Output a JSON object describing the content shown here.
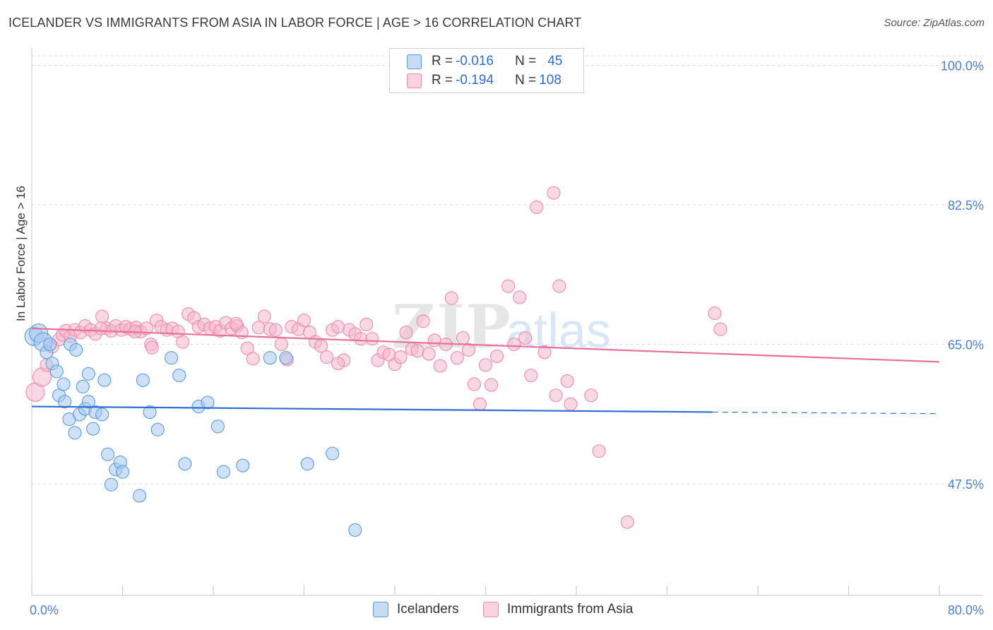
{
  "title": "ICELANDER VS IMMIGRANTS FROM ASIA IN LABOR FORCE | AGE > 16 CORRELATION CHART",
  "source": "Source: ZipAtlas.com",
  "watermark": "ZIPatlas",
  "legend": {
    "rows": [
      {
        "r_label": "R = ",
        "r_value": "-0.016",
        "n_label": "N = ",
        "n_value": "45",
        "color": "#a8c8f0"
      },
      {
        "r_label": "R = ",
        "r_value": "-0.194",
        "n_label": "N = ",
        "n_value": "108",
        "color": "#f4b8cc"
      }
    ]
  },
  "bottom_legend": [
    {
      "label": "Icelanders",
      "color": "#a8c8f0"
    },
    {
      "label": "Immigrants from Asia",
      "color": "#f4b8cc"
    }
  ],
  "chart_data": {
    "type": "scatter",
    "title": "ICELANDER VS IMMIGRANTS FROM ASIA IN LABOR FORCE | AGE > 16 CORRELATION CHART",
    "xlabel": "",
    "ylabel": "In Labor Force | Age > 16",
    "xlim": [
      0,
      80
    ],
    "ylim": [
      33.5,
      102
    ],
    "x_tick_labels": [
      "0.0%",
      "80.0%"
    ],
    "y_ticks": [
      47.5,
      65.0,
      82.5,
      100.0
    ],
    "y_tick_labels": [
      "47.5%",
      "65.0%",
      "82.5%",
      "100.0%"
    ],
    "grid": true,
    "legend_position": "top-center",
    "colors": {
      "blue": "#5b9be0",
      "blue_line": "#2e6fd1",
      "pink": "#f08aab",
      "pink_line": "#e8709a",
      "tick_label": "#4a7fd4"
    },
    "series": [
      {
        "name": "Icelanders",
        "color": "#a8c8f0",
        "stroke": "#5b9be0",
        "points": [
          [
            0.2,
            66.0
          ],
          [
            0.6,
            66.4
          ],
          [
            1.0,
            65.3
          ],
          [
            1.3,
            64.0
          ],
          [
            1.6,
            65.0
          ],
          [
            1.8,
            62.6
          ],
          [
            2.2,
            61.6
          ],
          [
            2.4,
            58.6
          ],
          [
            2.8,
            60.0
          ],
          [
            2.9,
            57.8
          ],
          [
            3.3,
            55.6
          ],
          [
            3.4,
            65.0
          ],
          [
            3.8,
            53.9
          ],
          [
            3.9,
            64.3
          ],
          [
            4.2,
            56.2
          ],
          [
            4.5,
            59.7
          ],
          [
            4.7,
            56.9
          ],
          [
            5.0,
            61.3
          ],
          [
            5.0,
            57.8
          ],
          [
            5.4,
            54.4
          ],
          [
            5.6,
            56.5
          ],
          [
            6.2,
            56.2
          ],
          [
            6.4,
            60.5
          ],
          [
            6.7,
            51.2
          ],
          [
            7.0,
            47.4
          ],
          [
            7.4,
            49.3
          ],
          [
            7.8,
            50.2
          ],
          [
            8.0,
            49.0
          ],
          [
            9.5,
            46.0
          ],
          [
            9.8,
            60.5
          ],
          [
            10.4,
            56.5
          ],
          [
            11.1,
            54.3
          ],
          [
            12.3,
            63.3
          ],
          [
            13.0,
            61.1
          ],
          [
            13.5,
            50.0
          ],
          [
            14.7,
            57.2
          ],
          [
            15.5,
            57.7
          ],
          [
            16.4,
            54.7
          ],
          [
            16.9,
            49.0
          ],
          [
            18.6,
            49.8
          ],
          [
            21.0,
            63.3
          ],
          [
            22.4,
            63.3
          ],
          [
            24.3,
            50.0
          ],
          [
            26.5,
            51.3
          ],
          [
            28.5,
            41.7
          ]
        ]
      },
      {
        "name": "Immigrants from Asia",
        "color": "#f4b8cc",
        "stroke": "#f08aab",
        "points": [
          [
            0.3,
            59.0
          ],
          [
            0.9,
            60.9
          ],
          [
            1.3,
            62.4
          ],
          [
            1.8,
            64.7
          ],
          [
            2.4,
            65.6
          ],
          [
            2.7,
            66.2
          ],
          [
            3.0,
            66.7
          ],
          [
            3.4,
            66.0
          ],
          [
            3.8,
            66.8
          ],
          [
            4.3,
            66.5
          ],
          [
            4.7,
            67.3
          ],
          [
            5.2,
            66.8
          ],
          [
            5.6,
            66.3
          ],
          [
            6.2,
            68.5
          ],
          [
            6.6,
            67.0
          ],
          [
            7.0,
            66.7
          ],
          [
            7.4,
            67.3
          ],
          [
            7.9,
            66.8
          ],
          [
            8.3,
            67.2
          ],
          [
            8.7,
            66.9
          ],
          [
            9.2,
            67.1
          ],
          [
            9.6,
            66.6
          ],
          [
            10.1,
            67.0
          ],
          [
            10.5,
            65.0
          ],
          [
            11.0,
            68.0
          ],
          [
            11.4,
            67.2
          ],
          [
            11.9,
            66.8
          ],
          [
            12.4,
            67.0
          ],
          [
            12.9,
            66.6
          ],
          [
            13.3,
            65.3
          ],
          [
            13.8,
            68.8
          ],
          [
            14.3,
            68.3
          ],
          [
            14.7,
            67.2
          ],
          [
            15.2,
            67.5
          ],
          [
            15.7,
            67.0
          ],
          [
            16.2,
            67.2
          ],
          [
            16.6,
            66.7
          ],
          [
            17.1,
            67.7
          ],
          [
            17.6,
            67.0
          ],
          [
            18.1,
            67.3
          ],
          [
            18.5,
            66.5
          ],
          [
            19.0,
            64.5
          ],
          [
            19.5,
            63.2
          ],
          [
            20.0,
            67.1
          ],
          [
            20.5,
            68.5
          ],
          [
            21.0,
            66.9
          ],
          [
            21.5,
            66.8
          ],
          [
            22.0,
            65.0
          ],
          [
            22.5,
            63.1
          ],
          [
            22.9,
            67.2
          ],
          [
            23.5,
            66.9
          ],
          [
            24.0,
            68.0
          ],
          [
            24.5,
            66.5
          ],
          [
            25.0,
            65.3
          ],
          [
            25.5,
            64.8
          ],
          [
            26.0,
            63.4
          ],
          [
            26.5,
            66.8
          ],
          [
            27.0,
            67.2
          ],
          [
            27.5,
            63.0
          ],
          [
            28.0,
            66.8
          ],
          [
            28.5,
            66.3
          ],
          [
            29.0,
            65.7
          ],
          [
            29.5,
            67.5
          ],
          [
            30.0,
            65.7
          ],
          [
            30.5,
            63.0
          ],
          [
            31.0,
            64.0
          ],
          [
            31.5,
            63.7
          ],
          [
            32.0,
            62.5
          ],
          [
            32.5,
            63.4
          ],
          [
            33.0,
            66.5
          ],
          [
            33.5,
            64.4
          ],
          [
            34.0,
            64.2
          ],
          [
            34.5,
            67.9
          ],
          [
            35.0,
            63.8
          ],
          [
            35.5,
            65.5
          ],
          [
            36.0,
            62.3
          ],
          [
            36.5,
            65.0
          ],
          [
            37.0,
            70.8
          ],
          [
            37.5,
            63.3
          ],
          [
            38.0,
            65.8
          ],
          [
            38.5,
            64.3
          ],
          [
            39.0,
            60.0
          ],
          [
            39.5,
            57.5
          ],
          [
            40.0,
            62.4
          ],
          [
            40.5,
            59.9
          ],
          [
            41.0,
            63.5
          ],
          [
            42.0,
            72.3
          ],
          [
            42.5,
            65.0
          ],
          [
            43.0,
            70.9
          ],
          [
            43.5,
            65.8
          ],
          [
            44.0,
            61.1
          ],
          [
            44.5,
            82.2
          ],
          [
            45.2,
            64.0
          ],
          [
            46.2,
            58.6
          ],
          [
            46.5,
            72.3
          ],
          [
            46.0,
            84.0
          ],
          [
            47.2,
            60.4
          ],
          [
            47.5,
            57.5
          ],
          [
            49.3,
            58.6
          ],
          [
            50.0,
            51.6
          ],
          [
            52.5,
            42.7
          ],
          [
            60.2,
            68.9
          ],
          [
            60.7,
            66.9
          ],
          [
            6.1,
            67.0
          ],
          [
            9.1,
            66.6
          ],
          [
            10.6,
            64.6
          ],
          [
            18.0,
            67.6
          ],
          [
            27.0,
            62.6
          ]
        ]
      }
    ],
    "trend_lines": [
      {
        "series": "Icelanders",
        "x": [
          0,
          60
        ],
        "y": [
          57.2,
          56.5
        ],
        "dashed_extension": [
          60,
          80
        ],
        "dashed_y": [
          56.5,
          56.3
        ],
        "color": "#2e6fd1"
      },
      {
        "series": "Immigrants from Asia",
        "x": [
          0,
          80
        ],
        "y": [
          67.0,
          62.8
        ],
        "color": "#e8709a"
      }
    ]
  }
}
